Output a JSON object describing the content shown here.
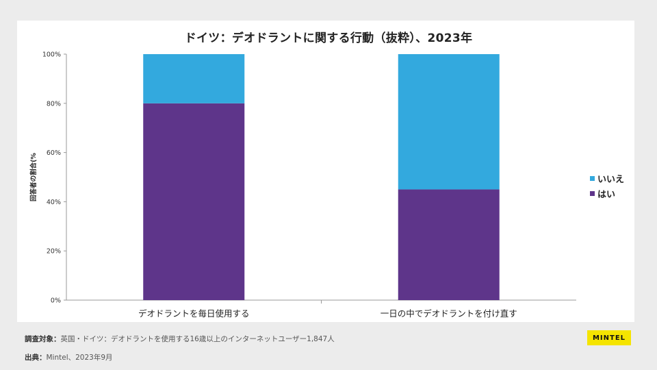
{
  "chart_data": {
    "type": "bar",
    "stacked": true,
    "title": "ドイツ：デオドラントに関する行動（抜粋）、2023年",
    "ylabel": "回答者の割合(%",
    "xlabel": "",
    "ylim": [
      0,
      100
    ],
    "yticks": [
      "0%",
      "20%",
      "40%",
      "60%",
      "80%",
      "100%"
    ],
    "categories": [
      "デオドラントを毎日使用する",
      "一日の中でデオドラントを付け直す"
    ],
    "series": [
      {
        "name": "はい",
        "values": [
          80,
          45
        ],
        "color": "#5e358a"
      },
      {
        "name": "いいえ",
        "values": [
          20,
          55
        ],
        "color": "#33a9de"
      }
    ],
    "legend_position": "right"
  },
  "legend": [
    {
      "label": "いいえ",
      "color": "#33a9de"
    },
    {
      "label": "はい",
      "color": "#5e358a"
    }
  ],
  "footer": {
    "survey_label": "調査対象：",
    "survey_text": "英国・ドイツ：デオドラントを使用する16歳以上のインターネットユーザー1,847人",
    "source_label": "出典：",
    "source_text": "Mintel、2023年9月"
  },
  "brand": {
    "logo_text": "MINTEL",
    "logo_color": "#f5e400"
  }
}
